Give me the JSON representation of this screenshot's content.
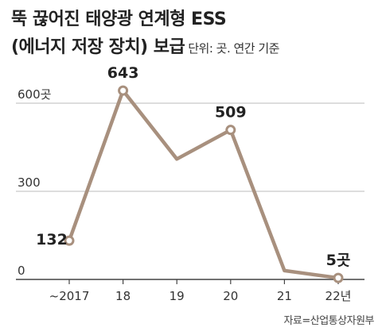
{
  "title_line1": "뚝 끊어진 태양광 연계형 ESS",
  "title_line2": "(에너지 저장 장치) 보급",
  "unit": "단위: 곳. 연간 기준",
  "source": "자료=산업통상자원부",
  "chart_data": {
    "type": "line",
    "title": "뚝 끊어진 태양광 연계형 ESS (에너지 저장 장치) 보급",
    "categories": [
      "~2017",
      "18",
      "19",
      "20",
      "21",
      "22년"
    ],
    "values": [
      132,
      643,
      410,
      509,
      30,
      5
    ],
    "data_labels": [
      "132",
      "643",
      "",
      "509",
      "",
      "5곳"
    ],
    "y_ticks": [
      "0",
      "300",
      "600곳"
    ],
    "y_tick_values": [
      0,
      300,
      600
    ],
    "ylim": [
      0,
      700
    ],
    "grid": true,
    "colors": {
      "line": "#a8907e",
      "marker_fill": "#ffffff",
      "grid": "#bbbbbb",
      "axis": "#444444"
    }
  }
}
